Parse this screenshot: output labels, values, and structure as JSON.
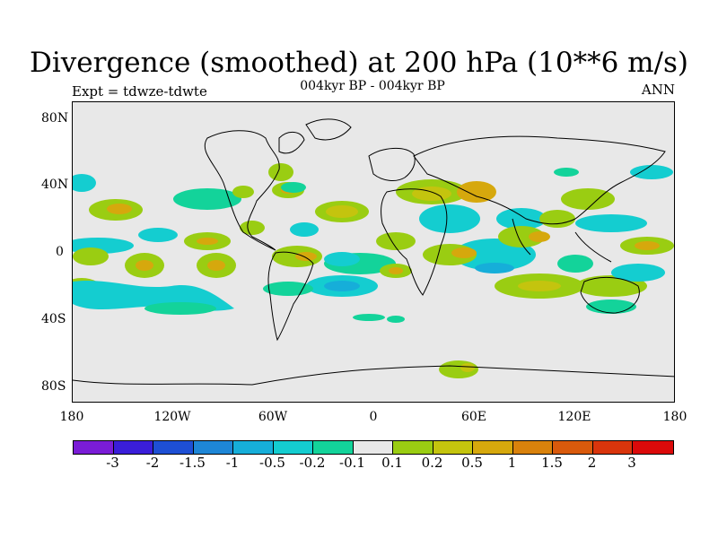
{
  "title": "Divergence (smoothed) at 200 hPa (10**6 m/s)",
  "subtitle": "004kyr BP - 004kyr BP",
  "expt_label": "Expt = tdwze-tdwte",
  "season": "ANN",
  "lat_labels": [
    "80N",
    "40N",
    "0",
    "40S",
    "80S"
  ],
  "lon_labels": [
    "180",
    "120W",
    "60W",
    "0",
    "60E",
    "120E",
    "180"
  ],
  "colorbar": {
    "labels": [
      "-3",
      "-2",
      "-1.5",
      "-1",
      "-0.5",
      "-0.2",
      "-0.1",
      "0.1",
      "0.2",
      "0.5",
      "1",
      "1.5",
      "2",
      "3"
    ],
    "colors": [
      "#7a1cd6",
      "#3a1ed9",
      "#1e4fd4",
      "#1e86d6",
      "#16aed9",
      "#14cdd0",
      "#13d39a",
      "#e8e8e8",
      "#9acd12",
      "#c4c40e",
      "#d6a80d",
      "#d9820c",
      "#d95a0c",
      "#d9350c",
      "#db0a0a"
    ]
  },
  "map_colors": {
    "background": "#e8e8e8",
    "cyan": "#14cdd0",
    "teal": "#13d39a",
    "blue": "#16aed9",
    "lime": "#9acd12",
    "olive": "#c4c40e",
    "ochre": "#d6a80d"
  }
}
